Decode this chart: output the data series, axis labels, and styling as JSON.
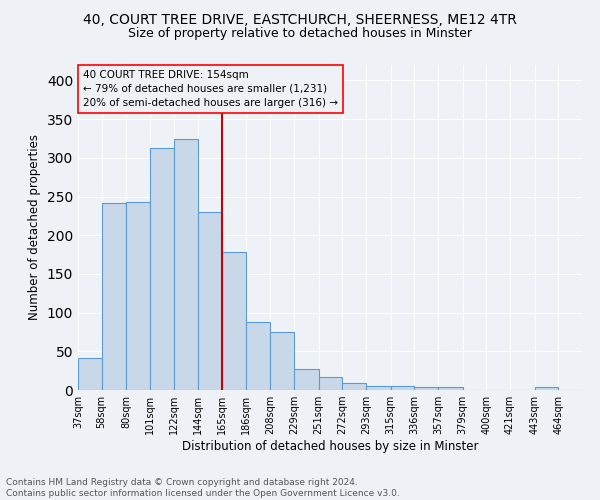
{
  "title_line1": "40, COURT TREE DRIVE, EASTCHURCH, SHEERNESS, ME12 4TR",
  "title_line2": "Size of property relative to detached houses in Minster",
  "xlabel": "Distribution of detached houses by size in Minster",
  "ylabel": "Number of detached properties",
  "footnote": "Contains HM Land Registry data © Crown copyright and database right 2024.\nContains public sector information licensed under the Open Government Licence v3.0.",
  "annotation_line1": "40 COURT TREE DRIVE: 154sqm",
  "annotation_line2": "← 79% of detached houses are smaller (1,231)",
  "annotation_line3": "20% of semi-detached houses are larger (316) →",
  "bar_color": "#c8d8e8",
  "bar_edge_color": "#5b9bd5",
  "vline_color": "#cc0000",
  "categories": [
    "37sqm",
    "58sqm",
    "80sqm",
    "101sqm",
    "122sqm",
    "144sqm",
    "165sqm",
    "186sqm",
    "208sqm",
    "229sqm",
    "251sqm",
    "272sqm",
    "293sqm",
    "315sqm",
    "336sqm",
    "357sqm",
    "379sqm",
    "400sqm",
    "421sqm",
    "443sqm",
    "464sqm"
  ],
  "bin_edges": [
    37,
    58,
    80,
    101,
    122,
    144,
    165,
    186,
    208,
    229,
    251,
    272,
    293,
    315,
    336,
    357,
    379,
    400,
    421,
    443,
    464,
    485
  ],
  "values": [
    42,
    242,
    243,
    313,
    325,
    230,
    178,
    88,
    75,
    27,
    17,
    9,
    5,
    5,
    4,
    4,
    0,
    0,
    0,
    4,
    0
  ],
  "ylim": [
    0,
    420
  ],
  "yticks": [
    0,
    50,
    100,
    150,
    200,
    250,
    300,
    350,
    400
  ],
  "background_color": "#eef2f7",
  "grid_color": "#ffffff",
  "title1_fontsize": 10,
  "title2_fontsize": 9,
  "ylabel_fontsize": 8.5,
  "xlabel_fontsize": 8.5,
  "tick_fontsize": 7,
  "annot_fontsize": 7.5,
  "footnote_fontsize": 6.5
}
